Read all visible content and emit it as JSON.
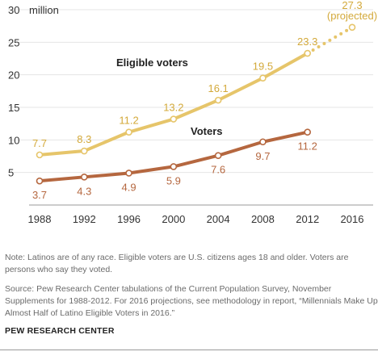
{
  "chart_data": {
    "type": "line",
    "x": [
      1988,
      1992,
      1996,
      2000,
      2004,
      2008,
      2012,
      2016
    ],
    "x_tick_labels": [
      "1988",
      "1992",
      "1996",
      "2000",
      "2004",
      "2008",
      "2012",
      "2016"
    ],
    "y_ticks": [
      5,
      10,
      15,
      20,
      25,
      30
    ],
    "y_tick_labels": [
      "5",
      "10",
      "15",
      "20",
      "25",
      "30"
    ],
    "y_unit": "million",
    "ylim": [
      0,
      30
    ],
    "grid": true,
    "series": [
      {
        "name": "Eligible voters",
        "color": "#e6c56a",
        "label_color": "#d3a93a",
        "x": [
          1988,
          1992,
          1996,
          2000,
          2004,
          2008,
          2012
        ],
        "values": [
          7.7,
          8.3,
          11.2,
          13.2,
          16.1,
          19.5,
          23.3
        ],
        "labels": [
          "7.7",
          "8.3",
          "11.2",
          "13.2",
          "16.1",
          "19.5",
          "23.3"
        ],
        "projection": {
          "x": 2016,
          "value": 27.3,
          "label": "27.3",
          "note": "(projected)"
        }
      },
      {
        "name": "Voters",
        "color": "#b5673f",
        "label_color": "#b5673f",
        "x": [
          1988,
          1992,
          1996,
          2000,
          2004,
          2008,
          2012
        ],
        "values": [
          3.7,
          4.3,
          4.9,
          5.9,
          7.6,
          9.7,
          11.2
        ],
        "labels": [
          "3.7",
          "4.3",
          "4.9",
          "5.9",
          "7.6",
          "9.7",
          "11.2"
        ]
      }
    ]
  },
  "notes": {
    "note": "Note: Latinos are of any race. Eligible voters are U.S. citizens ages 18 and older. Voters are persons who say they voted.",
    "source": "Source: Pew Research Center tabulations of the Current Population Survey, November Supplements for 1988-2012. For 2016 projections, see methodology in report, “Millennials Make Up Almost Half of Latino Eligible Voters in 2016.”"
  },
  "org": "PEW RESEARCH CENTER"
}
